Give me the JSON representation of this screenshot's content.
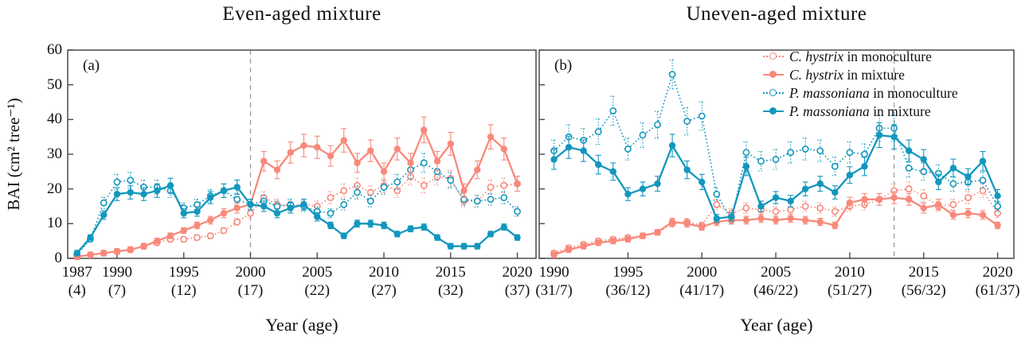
{
  "figure": {
    "titles": {
      "panel_a": "Even-aged mixture",
      "panel_b": "Uneven-aged mixture"
    },
    "x_axis_label": "Year (age)",
    "y_axis": {
      "label": "BAI (cm² tree⁻¹)",
      "ticks": [
        0,
        10,
        20,
        30,
        40,
        50,
        60
      ],
      "min": 0,
      "max": 60
    },
    "colors": {
      "c_hystrix": "#f8897b",
      "p_massoniana": "#1297bd",
      "frame": "#4a4a4a",
      "dashed_line": "#9c9c9c",
      "text": "#111111"
    }
  },
  "legend": {
    "items": [
      {
        "species": "C. hystrix",
        "rest": " in monoculture",
        "color": "#f8897b",
        "marker": "open",
        "line": "dotted"
      },
      {
        "species": "C. hystrix",
        "rest": " in mixture",
        "color": "#f8897b",
        "marker": "filled",
        "line": "solid"
      },
      {
        "species": "P. massoniana",
        "rest": " in monoculture",
        "color": "#1297bd",
        "marker": "open",
        "line": "dotted"
      },
      {
        "species": "P. massoniana",
        "rest": " in mixture",
        "color": "#1297bd",
        "marker": "filled",
        "line": "solid"
      }
    ]
  },
  "chart_data": [
    {
      "id": "a",
      "type": "line",
      "title": "Even-aged mixture",
      "panel_label": "(a)",
      "xlabel": "Year (age)",
      "ylabel": "BAI (cm² tree⁻¹)",
      "ylim": [
        0,
        60
      ],
      "grid": false,
      "x_domain": [
        1986.3,
        2021.4
      ],
      "vline_year": 2000,
      "x_ticks": [
        {
          "year": 1987,
          "age": "(4)"
        },
        {
          "year": 1990,
          "age": "(7)"
        },
        {
          "year": 1995,
          "age": "(12)"
        },
        {
          "year": 2000,
          "age": "(17)"
        },
        {
          "year": 2005,
          "age": "(22)"
        },
        {
          "year": 2010,
          "age": "(27)"
        },
        {
          "year": 2015,
          "age": "(32)"
        },
        {
          "year": 2020,
          "age": "(37)"
        }
      ],
      "x": [
        1987,
        1988,
        1989,
        1990,
        1991,
        1992,
        1993,
        1994,
        1995,
        1996,
        1997,
        1998,
        1999,
        2000,
        2001,
        2002,
        2003,
        2004,
        2005,
        2006,
        2007,
        2008,
        2009,
        2010,
        2011,
        2012,
        2013,
        2014,
        2015,
        2016,
        2017,
        2018,
        2019,
        2020
      ],
      "series": [
        {
          "name": "C. hystrix in monoculture",
          "color": "#f8897b",
          "line": "dotted",
          "marker": "open",
          "values": [
            0.5,
            1,
            1.5,
            2,
            2.5,
            3.5,
            4.5,
            5.5,
            5.5,
            6,
            6.5,
            8,
            10.5,
            13,
            17.5,
            15.5,
            15,
            15.5,
            15,
            17.5,
            19.5,
            21,
            19,
            21,
            19.5,
            23.5,
            21,
            23.5,
            23,
            16.5,
            16.5,
            20.5,
            21,
            21.5
          ]
        },
        {
          "name": "C. hystrix in mixture",
          "color": "#f8897b",
          "line": "solid",
          "marker": "filled",
          "values": [
            0.5,
            1,
            1.5,
            2,
            2.5,
            3.5,
            5,
            6.5,
            8,
            9.5,
            11,
            13,
            14.5,
            15.5,
            28,
            25.5,
            30.5,
            32.5,
            32,
            29.5,
            34,
            27.5,
            31,
            25,
            31.5,
            27.5,
            37,
            28,
            33,
            19.5,
            25.5,
            35,
            31.5,
            21.5
          ]
        },
        {
          "name": "P. massoniana in monoculture",
          "color": "#1297bd",
          "line": "dotted",
          "marker": "open",
          "values": [
            1,
            5.5,
            16,
            22,
            22.5,
            20.5,
            20.5,
            19.5,
            14.5,
            15.5,
            18,
            19.5,
            17,
            15.5,
            16.5,
            15,
            15.5,
            15,
            13.5,
            13,
            15.5,
            19,
            16.5,
            20.5,
            22,
            25.5,
            27.5,
            25,
            22.5,
            17,
            16.5,
            17,
            17.5,
            13.5
          ]
        },
        {
          "name": "P. massoniana in mixture",
          "color": "#1297bd",
          "line": "solid",
          "marker": "filled",
          "values": [
            1.5,
            6,
            12.5,
            18.5,
            19,
            18.5,
            19.5,
            21,
            13,
            13.5,
            17.5,
            19.5,
            20.5,
            15.5,
            15,
            13,
            14.5,
            15.5,
            12,
            9.5,
            6.5,
            10,
            10,
            9.5,
            7,
            8.5,
            9,
            6,
            3.5,
            3.5,
            3.5,
            7,
            9,
            6
          ]
        }
      ],
      "error_bar_rule": {
        "base_min": 0.8,
        "fraction": 0.1,
        "max": 4.2
      }
    },
    {
      "id": "b",
      "type": "line",
      "title": "Uneven-aged mixture",
      "panel_label": "(b)",
      "xlabel": "Year (age)",
      "ylabel": "BAI (cm² tree⁻¹)",
      "ylim": [
        0,
        60
      ],
      "grid": false,
      "x_domain": [
        1989.0,
        2021.1
      ],
      "vline_year": 2013,
      "x_ticks": [
        {
          "year": 1990,
          "age": "(31/7)"
        },
        {
          "year": 1995,
          "age": "(36/12)"
        },
        {
          "year": 2000,
          "age": "(41/17)"
        },
        {
          "year": 2005,
          "age": "(46/22)"
        },
        {
          "year": 2010,
          "age": "(51/27)"
        },
        {
          "year": 2015,
          "age": "(56/32)"
        },
        {
          "year": 2020,
          "age": "(61/37)"
        }
      ],
      "x": [
        1990,
        1991,
        1992,
        1993,
        1994,
        1995,
        1996,
        1997,
        1998,
        1999,
        2000,
        2001,
        2002,
        2003,
        2004,
        2005,
        2006,
        2007,
        2008,
        2009,
        2010,
        2011,
        2012,
        2013,
        2014,
        2015,
        2016,
        2017,
        2018,
        2019,
        2020
      ],
      "series": [
        {
          "name": "C. hystrix in monoculture",
          "color": "#f8897b",
          "line": "dotted",
          "marker": "open",
          "values": [
            1.5,
            3,
            4,
            5,
            5.5,
            6,
            6.5,
            7.5,
            10,
            10.5,
            9.5,
            15.5,
            13,
            14.5,
            14,
            13.5,
            14,
            15,
            14.5,
            13.5,
            15,
            15.5,
            17,
            19.5,
            20,
            18,
            15,
            15.5,
            17.5,
            19.5,
            13
          ]
        },
        {
          "name": "C. hystrix in mixture",
          "color": "#f8897b",
          "line": "solid",
          "marker": "filled",
          "values": [
            1,
            2.5,
            3.5,
            4.5,
            5,
            5.5,
            6.5,
            7.5,
            10.5,
            10,
            9,
            10.5,
            11,
            11,
            11.5,
            11,
            11.5,
            11,
            10.5,
            9.5,
            16,
            17,
            17,
            17.5,
            17,
            14.5,
            15.5,
            12.5,
            13,
            12.5,
            9.5
          ]
        },
        {
          "name": "P. massoniana in monoculture",
          "color": "#1297bd",
          "line": "dotted",
          "marker": "open",
          "values": [
            31,
            35,
            34,
            36.5,
            42.5,
            31.5,
            35.5,
            38.5,
            53,
            39.5,
            41,
            18.5,
            11,
            30.5,
            28,
            28.5,
            30.5,
            31.5,
            31,
            26.5,
            30.5,
            30,
            37.5,
            37.5,
            26,
            25,
            24.5,
            21.5,
            22,
            22.5,
            15
          ]
        },
        {
          "name": "P. massoniana in mixture",
          "color": "#1297bd",
          "line": "solid",
          "marker": "filled",
          "values": [
            28.5,
            32,
            31,
            27,
            25,
            18.5,
            20,
            21.5,
            32.5,
            25.5,
            22,
            11.5,
            12,
            26.5,
            15,
            17.5,
            16.5,
            20,
            21.5,
            19,
            24,
            26.5,
            35.5,
            35,
            31,
            28.5,
            22,
            26,
            23.5,
            28,
            18
          ]
        }
      ],
      "error_bar_rule": {
        "base_min": 0.8,
        "fraction": 0.1,
        "max": 4.2
      }
    }
  ]
}
